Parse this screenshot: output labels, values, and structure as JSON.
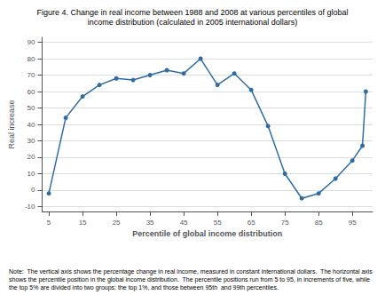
{
  "chart_data": {
    "type": "line",
    "title": "Figure 4. Change in real income between 1988 and 2008 at various percentiles of global",
    "subtitle": "income distribution (calculated in 2005 international dollars)",
    "xlabel": "Percentile of global income distribution",
    "ylabel": "Real increase",
    "x": [
      5,
      10,
      15,
      20,
      25,
      30,
      35,
      40,
      45,
      50,
      55,
      60,
      65,
      70,
      75,
      80,
      85,
      90,
      95,
      98,
      99
    ],
    "values": [
      -2,
      44,
      57,
      64,
      68,
      67,
      70,
      73,
      71,
      80,
      64,
      71,
      61,
      39,
      10,
      -5,
      -2,
      7,
      18,
      27,
      60
    ],
    "color": "#2E6DA4",
    "marker": "circle",
    "xlim": [
      3,
      101
    ],
    "ylim": [
      -13,
      93
    ],
    "xticks": [
      5,
      15,
      25,
      35,
      45,
      55,
      65,
      75,
      85,
      95
    ],
    "yticks": [
      -10,
      0,
      10,
      20,
      30,
      40,
      50,
      60,
      70,
      80,
      90
    ],
    "grid": true,
    "annotations": [
      "Note:  The vertical axis shows the percentage change in real income, measured in constant international dollars.  The horizontal axis shows the percentile position in the global income distribution.  The percentile positions run from 5 to 95, in increments of five, while the top 5% are divided into two groups: the top 1%, and those between 95th  and 99th percentiles."
    ]
  }
}
